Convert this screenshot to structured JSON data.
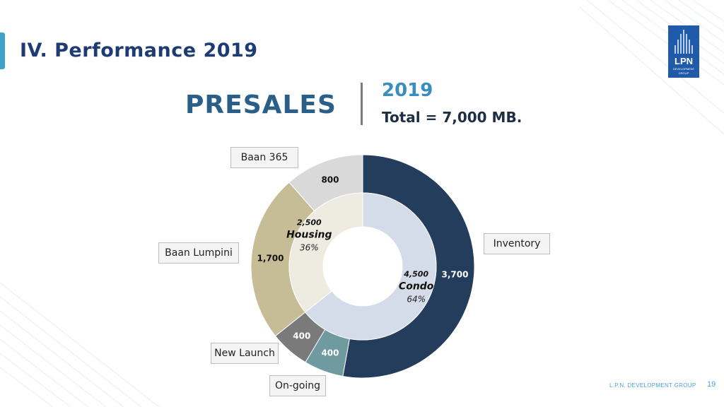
{
  "slide": {
    "title": "IV. Performance 2019",
    "heading": "PRESALES",
    "year": "2019",
    "total": "Total = 7,000 MB.",
    "logo_main": "LPN",
    "logo_sub_1": "DEVELOPMENT",
    "logo_sub_2": "GROUP",
    "footer": "L.P.N. DEVELOPMENT GROUP",
    "page_number": "19"
  },
  "colors": {
    "title": "#1e3b73",
    "inventory": "#243d5c",
    "ongoing": "#6e9aa0",
    "new_launch": "#7a7a7a",
    "baan_lumpini": "#c6bd97",
    "baan_365": "#d9d9d9",
    "condo_inner": "#d5dce9",
    "housing_inner": "#eeebe1"
  },
  "chart_data": {
    "type": "pie",
    "unit": "MB",
    "outer_ring": [
      {
        "name": "Inventory",
        "value": 3700,
        "label": "3,700",
        "color": "#243d5c"
      },
      {
        "name": "On-going",
        "value": 400,
        "label": "400",
        "color": "#6e9aa0"
      },
      {
        "name": "New Launch",
        "value": 400,
        "label": "400",
        "color": "#7a7a7a"
      },
      {
        "name": "Baan Lumpini",
        "value": 1700,
        "label": "1,700",
        "color": "#c6bd97"
      },
      {
        "name": "Baan 365",
        "value": 800,
        "label": "800",
        "color": "#d9d9d9"
      }
    ],
    "inner_ring": [
      {
        "name": "Condo",
        "value": 4500,
        "label": "4,500",
        "percent": "64%",
        "color": "#d5dce9"
      },
      {
        "name": "Housing",
        "value": 2500,
        "label": "2,500",
        "percent": "36%",
        "color": "#eeebe1"
      }
    ]
  }
}
